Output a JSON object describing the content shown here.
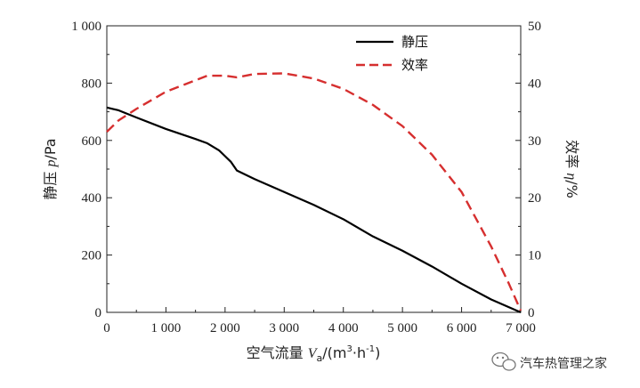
{
  "chart_data": {
    "type": "line",
    "x_ticks": [
      "0",
      "1 000",
      "2 000",
      "3 000",
      "4 000",
      "5 000",
      "6 000",
      "7 000"
    ],
    "y_left_ticks": [
      "0",
      "200",
      "400",
      "600",
      "800",
      "1 000"
    ],
    "y_right_ticks": [
      "0",
      "10",
      "20",
      "30",
      "40",
      "50"
    ],
    "xlim": [
      0,
      7000
    ],
    "ylim_left": [
      0,
      1000
    ],
    "ylim_right": [
      0,
      50
    ],
    "xlabel": {
      "main": "空气流量 ",
      "var": "V",
      "sub": "a",
      "unit_open": "/(m",
      "sup1": "3",
      "unit_mid": "·h",
      "sup2": "-1",
      "unit_close": ")"
    },
    "ylabel_left": {
      "main": "静压 ",
      "var": "p",
      "unit": "/Pa"
    },
    "ylabel_right": {
      "main": "效率 ",
      "var": "η",
      "unit": "/%"
    },
    "grid": false,
    "legend_position": "top-right-inside",
    "series": [
      {
        "name": "静压",
        "axis": "left",
        "style": "solid",
        "color": "#000000",
        "x": [
          0,
          200,
          500,
          1000,
          1500,
          1700,
          1900,
          2000,
          2100,
          2200,
          2500,
          3000,
          3500,
          4000,
          4500,
          5000,
          5500,
          6000,
          6500,
          7000
        ],
        "y": [
          715,
          705,
          680,
          640,
          605,
          590,
          565,
          545,
          525,
          495,
          465,
          420,
          375,
          325,
          265,
          215,
          160,
          100,
          45,
          0
        ]
      },
      {
        "name": "效率",
        "axis": "right",
        "style": "dashed",
        "color": "#d62f2f",
        "x": [
          0,
          200,
          500,
          1000,
          1500,
          1700,
          2000,
          2200,
          2500,
          3000,
          3500,
          4000,
          4500,
          5000,
          5500,
          6000,
          6500,
          6800,
          7000
        ],
        "y": [
          31.5,
          33.5,
          35.5,
          38.5,
          40.5,
          41.3,
          41.3,
          41.0,
          41.6,
          41.7,
          40.8,
          39.0,
          36.2,
          32.5,
          27.5,
          21.0,
          11.5,
          5.0,
          0.3
        ]
      }
    ]
  },
  "watermark": {
    "text": "汽车热管理之家",
    "icon": "wechat-icon"
  }
}
